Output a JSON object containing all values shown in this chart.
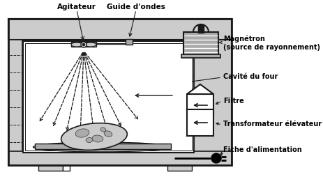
{
  "labels": {
    "agitateur": "Agitateur",
    "guide_ondes": "Guide d'ondes",
    "magnetron": "Magnétron\n(source de rayonnement)",
    "cavite": "Cavité du four",
    "filtre": "Filtre",
    "transformateur": "Transformateur élévateur",
    "fiche": "Fiche d'alimentation"
  },
  "lc": "#1a1a1a",
  "fill_light": "#cccccc",
  "fill_mid": "#aaaaaa",
  "fill_dark": "#777777",
  "white": "#ffffff",
  "black": "#000000"
}
